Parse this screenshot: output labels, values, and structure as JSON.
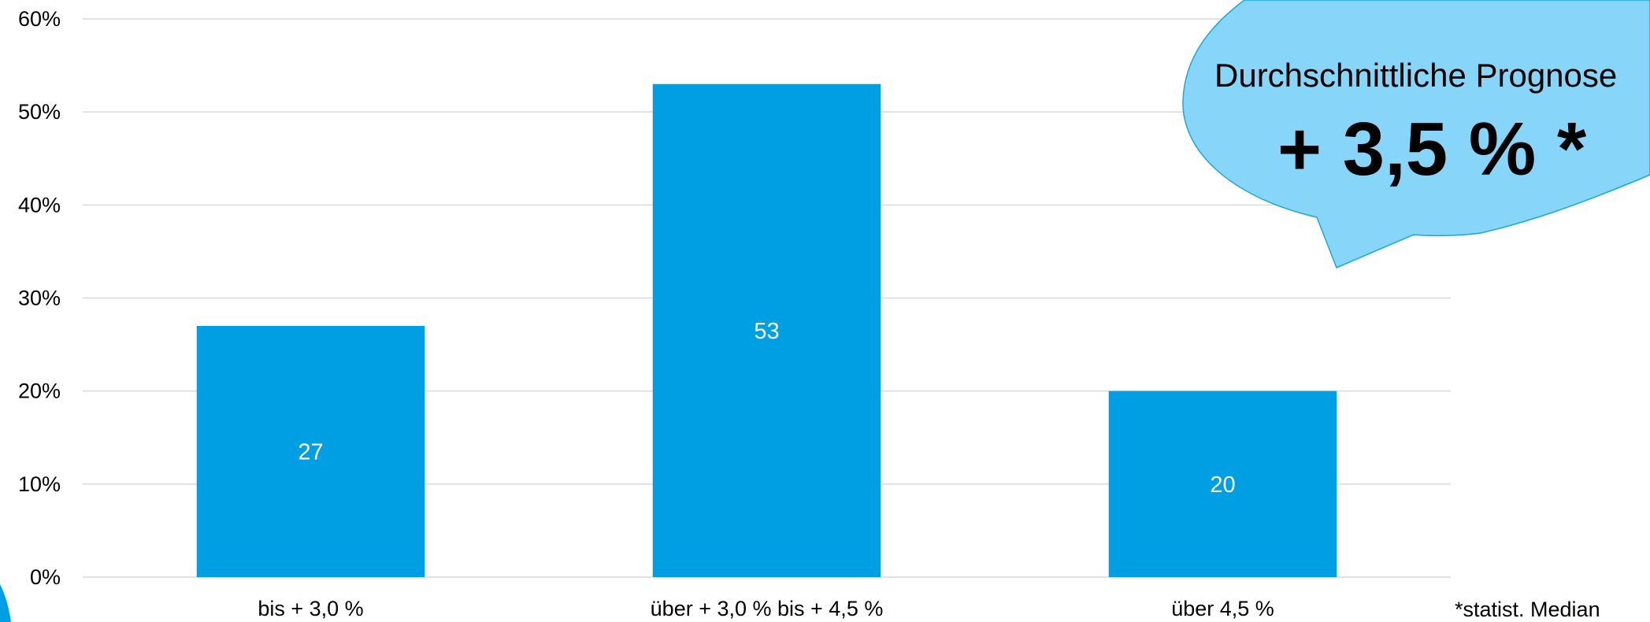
{
  "chart_data": {
    "type": "bar",
    "categories": [
      "bis + 3,0 %",
      "über + 3,0 % bis + 4,5 %",
      "über 4,5 %"
    ],
    "values": [
      27,
      53,
      20
    ],
    "data_labels": [
      "27",
      "53",
      "20"
    ],
    "ylim": [
      0,
      60
    ],
    "yticks": [
      0,
      10,
      20,
      30,
      40,
      50,
      60
    ],
    "ytick_labels": [
      "0%",
      "10%",
      "20%",
      "30%",
      "40%",
      "50%",
      "60%"
    ],
    "grid": true,
    "bar_color": "#009FE3",
    "title": "",
    "xlabel": "",
    "ylabel": ""
  },
  "callout": {
    "line1": "Durchschnittliche Prognose",
    "line2": "+ 3,5 % *",
    "fill_color": "#87D5F8",
    "stroke_color": "#1BA7DB"
  },
  "footnote": "*statist. Median",
  "colors": {
    "grid": "#D9D9D9",
    "axis": "#D9D9D9",
    "corner_accent": "#009FE3"
  }
}
